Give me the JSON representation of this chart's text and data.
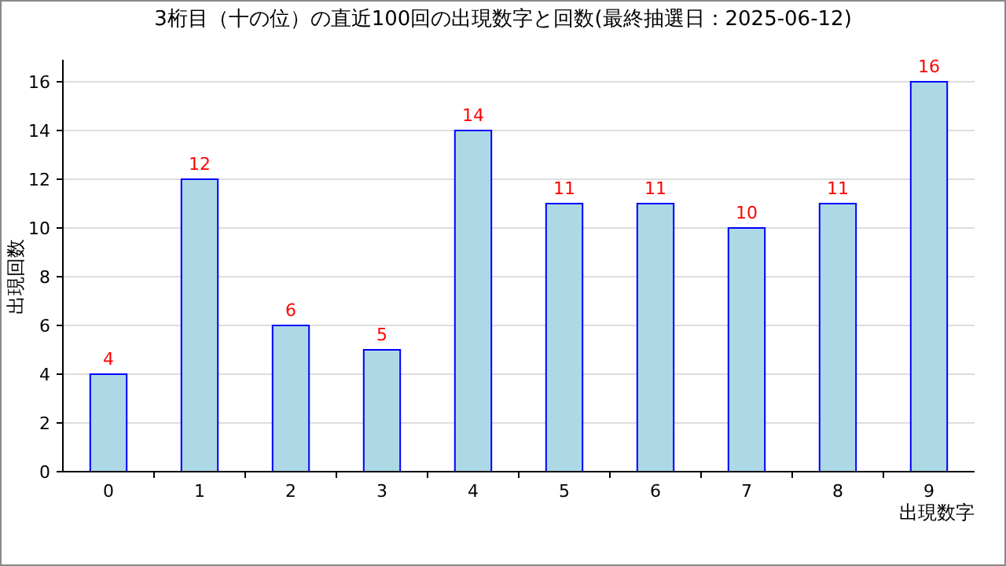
{
  "chart_data": {
    "type": "bar",
    "title": "3桁目（十の位）の直近100回の出現数字と回数(最終抽選日：2025-06-12)",
    "xlabel": "出現数字",
    "ylabel": "出現回数",
    "categories": [
      "0",
      "1",
      "2",
      "3",
      "4",
      "5",
      "6",
      "7",
      "8",
      "9"
    ],
    "values": [
      4,
      12,
      6,
      5,
      14,
      11,
      11,
      10,
      11,
      16
    ],
    "color": "#add8e6",
    "ylim": [
      0,
      16
    ],
    "yticks": [
      0,
      2,
      4,
      6,
      8,
      10,
      12,
      14,
      16
    ],
    "grid": "y",
    "data_labels": true
  }
}
